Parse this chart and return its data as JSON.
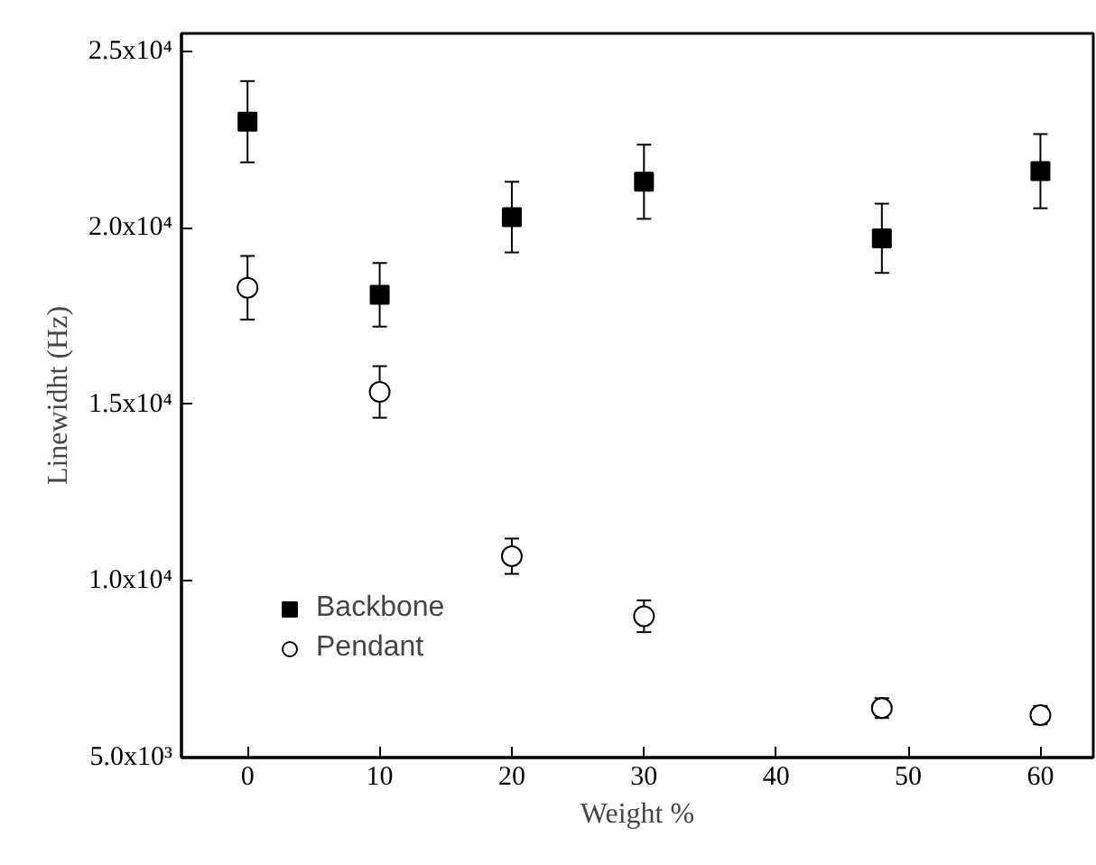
{
  "chart_data": {
    "type": "scatter",
    "xlabel": "Weight %",
    "ylabel": "Linewidht (Hz)",
    "x": [
      0,
      10,
      20,
      30,
      48,
      60
    ],
    "series": [
      {
        "name": "Backbone",
        "color": "#000000",
        "marker": "square",
        "values": [
          23000,
          18100,
          20300,
          21300,
          19700,
          21600
        ],
        "errors": [
          1150,
          900,
          1000,
          1050,
          980,
          1050
        ]
      },
      {
        "name": "Pendant",
        "color": "#000000",
        "marker": "circle",
        "values": [
          18300,
          15350,
          10700,
          9000,
          6400,
          6200
        ],
        "errors": [
          900,
          730,
          500,
          450,
          280,
          260
        ]
      }
    ],
    "xlim": [
      -5,
      64
    ],
    "xticks": [
      0,
      10,
      20,
      30,
      40,
      50,
      60
    ],
    "ylim": [
      5000,
      25500
    ],
    "yticks": [
      {
        "value": 5000,
        "label": "5.0x10³"
      },
      {
        "value": 10000,
        "label": "1.0x10⁴"
      },
      {
        "value": 15000,
        "label": "1.5x10⁴"
      },
      {
        "value": 20000,
        "label": "2.0x10⁴"
      },
      {
        "value": 25000,
        "label": "2.5x10⁴"
      }
    ],
    "grid": false,
    "legend": "bottom left"
  }
}
